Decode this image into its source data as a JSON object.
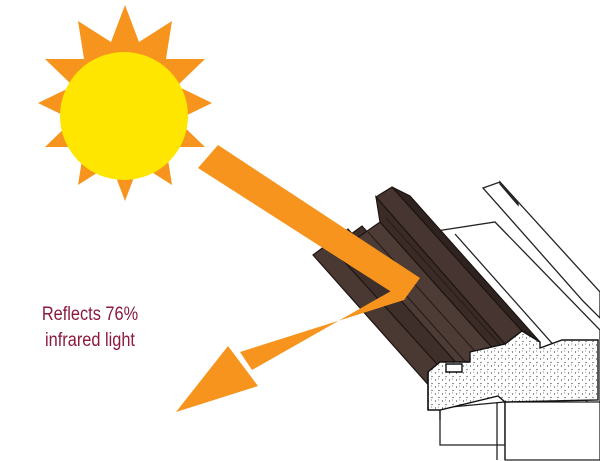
{
  "caption": {
    "line1": "Reflects 76%",
    "line2": "infrared light"
  },
  "colors": {
    "sun_core": "#ffe600",
    "sun_rays": "#f7941d",
    "beam": "#f7941d",
    "frame": "#4a3833",
    "frame_edge": "#2a1d1a",
    "caption_text": "#8b1a3d"
  },
  "icons": [
    "sun-icon",
    "light-beam-arrow",
    "window-frame-profile"
  ]
}
